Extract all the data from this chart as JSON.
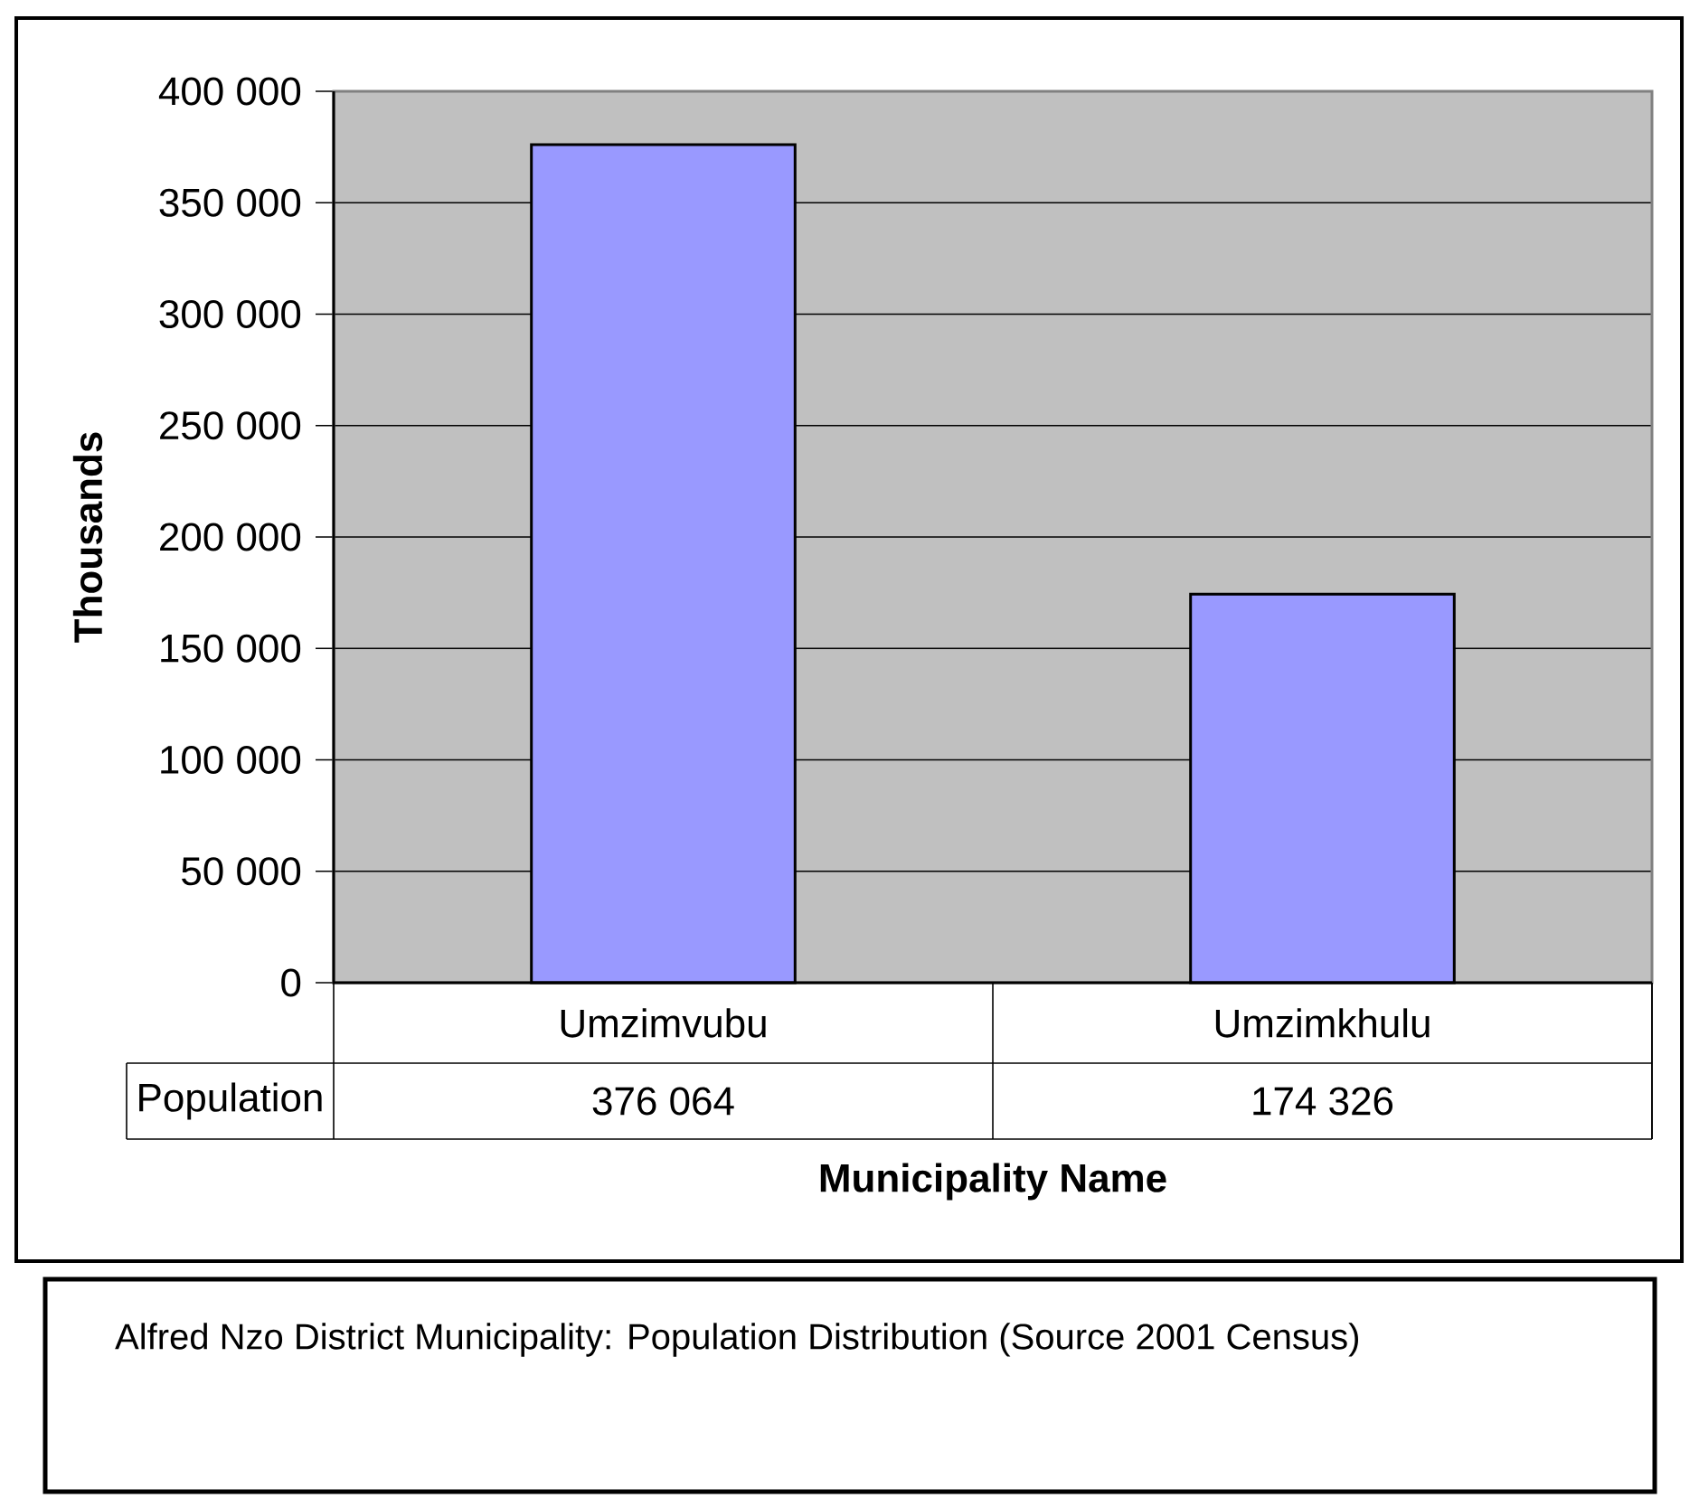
{
  "chart_data": {
    "type": "bar",
    "title": "Alfred Nzo District Municipality: Population Distribution (Source 2001 Census)",
    "xlabel": "Municipality Name",
    "ylabel": "Thousands",
    "categories": [
      "Umzimvubu",
      "Umzimkhulu"
    ],
    "series": [
      {
        "name": "Population",
        "color": "#9999ff",
        "values": [
          376064,
          174326
        ],
        "value_labels": [
          "376 064",
          "174 326"
        ]
      }
    ],
    "ylim": [
      0,
      400000
    ],
    "yticks": [
      {
        "value": 0,
        "label": "0"
      },
      {
        "value": 50000,
        "label": "50 000"
      },
      {
        "value": 100000,
        "label": "100 000"
      },
      {
        "value": 150000,
        "label": "150 000"
      },
      {
        "value": 200000,
        "label": "200 000"
      },
      {
        "value": 250000,
        "label": "250 000"
      },
      {
        "value": 300000,
        "label": "300 000"
      },
      {
        "value": 350000,
        "label": "350 000"
      },
      {
        "value": 400000,
        "label": "400 000"
      }
    ],
    "grid": "y"
  }
}
